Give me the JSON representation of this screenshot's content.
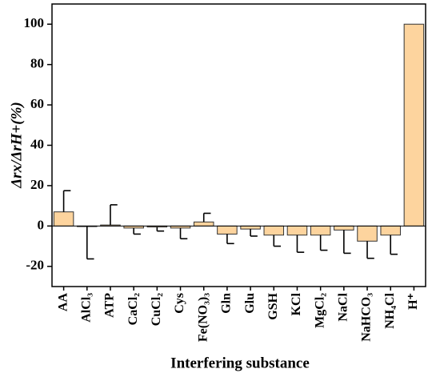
{
  "chart_data": {
    "type": "bar",
    "categories": [
      "AA",
      "AlCl₃",
      "ATP",
      "CaCl₂",
      "CuCl₂",
      "Cys",
      "Fe(NO₃)₃",
      "Gln",
      "Glu",
      "GSH",
      "KCl",
      "MgCl₂",
      "NaCl",
      "NaHCO₃",
      "NH₄Cl",
      "H⁺"
    ],
    "values": [
      7,
      -0.3,
      0.5,
      -1,
      -0.5,
      -1,
      2,
      -4,
      -1.5,
      -4.5,
      -4.5,
      -4.5,
      -2,
      -7.5,
      -4.5,
      100
    ],
    "errors": [
      10.5,
      16,
      10,
      3,
      2,
      5.3,
      4.3,
      4.7,
      3.5,
      5.5,
      8.5,
      7.5,
      11.5,
      8.5,
      9.5,
      0
    ],
    "color": "#fdd49e",
    "ylim": [
      -30,
      110
    ],
    "yticks": [
      -20,
      0,
      20,
      40,
      60,
      80,
      100
    ],
    "xlabel": "Interfering substance",
    "ylabel": "Δrx/ΔrH+(%)"
  }
}
